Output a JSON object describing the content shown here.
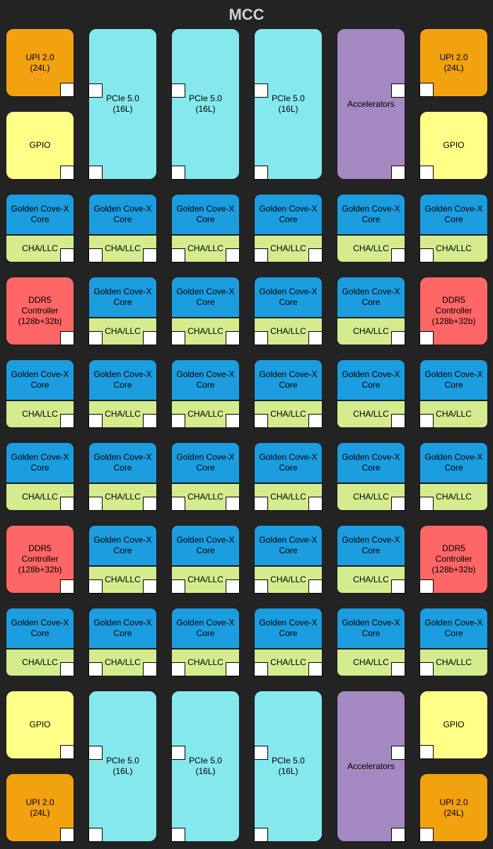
{
  "title": "MCC",
  "labels": {
    "upi": "UPI 2.0\n(24L)",
    "pcie": "PCIe 5.0\n(16L)",
    "gpio": "GPIO",
    "accel": "Accelerators",
    "core": "Golden Cove-X\nCore",
    "cha": "CHA/LLC",
    "ddr": "DDR5\nController\n(128b+32b)"
  },
  "colors": {
    "upi": "#f2a10f",
    "pcie": "#85e8ec",
    "gpio": "#ffff88",
    "accel": "#a388c2",
    "core": "#1b9de0",
    "cha": "#d4ec8e",
    "ddr": "#ff6666"
  },
  "layout_rows": [
    [
      "core",
      "core",
      "core",
      "core",
      "core",
      "core"
    ],
    [
      "ddr",
      "core",
      "core",
      "core",
      "core",
      "ddr"
    ],
    [
      "core",
      "core",
      "core",
      "core",
      "core",
      "core"
    ],
    [
      "core",
      "core",
      "core",
      "core",
      "core",
      "core"
    ],
    [
      "ddr",
      "core",
      "core",
      "core",
      "core",
      "ddr"
    ],
    [
      "core",
      "core",
      "core",
      "core",
      "core",
      "core"
    ]
  ]
}
